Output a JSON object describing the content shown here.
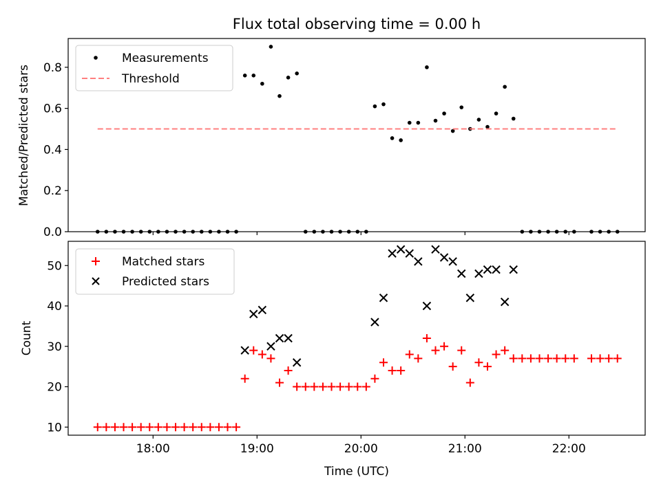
{
  "chart_data": [
    {
      "type": "scatter",
      "title": "Flux total observing time = 0.00 h",
      "xlabel": "",
      "ylabel": "Matched/Predicted stars",
      "xlim": [
        "17:11",
        "22:44"
      ],
      "ylim": [
        0,
        0.94
      ],
      "grid": false,
      "legend": "top-left",
      "x_ticks": [
        "18:00",
        "19:00",
        "20:00",
        "21:00",
        "22:00"
      ],
      "y_ticks": [
        "0.0",
        "0.2",
        "0.4",
        "0.6",
        "0.8"
      ],
      "series": [
        {
          "name": "Measurements",
          "marker": "dot",
          "color": "#000000",
          "points": [
            [
              "17:28",
              0
            ],
            [
              "17:33",
              0
            ],
            [
              "17:38",
              0
            ],
            [
              "17:43",
              0
            ],
            [
              "17:48",
              0
            ],
            [
              "17:53",
              0
            ],
            [
              "17:58",
              0
            ],
            [
              "18:03",
              0
            ],
            [
              "18:08",
              0
            ],
            [
              "18:13",
              0
            ],
            [
              "18:18",
              0
            ],
            [
              "18:23",
              0
            ],
            [
              "18:28",
              0
            ],
            [
              "18:33",
              0
            ],
            [
              "18:38",
              0
            ],
            [
              "18:43",
              0
            ],
            [
              "18:48",
              0
            ],
            [
              "18:53",
              0.76
            ],
            [
              "18:58",
              0.76
            ],
            [
              "19:03",
              0.72
            ],
            [
              "19:08",
              0.9
            ],
            [
              "19:13",
              0.66
            ],
            [
              "19:18",
              0.75
            ],
            [
              "19:23",
              0.77
            ],
            [
              "19:28",
              0
            ],
            [
              "19:33",
              0
            ],
            [
              "19:38",
              0
            ],
            [
              "19:43",
              0
            ],
            [
              "19:48",
              0
            ],
            [
              "19:53",
              0
            ],
            [
              "19:58",
              0
            ],
            [
              "20:03",
              0
            ],
            [
              "20:08",
              0.61
            ],
            [
              "20:13",
              0.62
            ],
            [
              "20:18",
              0.455
            ],
            [
              "20:23",
              0.445
            ],
            [
              "20:28",
              0.53
            ],
            [
              "20:33",
              0.53
            ],
            [
              "20:38",
              0.8
            ],
            [
              "20:43",
              0.54
            ],
            [
              "20:48",
              0.575
            ],
            [
              "20:53",
              0.49
            ],
            [
              "20:58",
              0.605
            ],
            [
              "21:03",
              0.5
            ],
            [
              "21:08",
              0.545
            ],
            [
              "21:13",
              0.51
            ],
            [
              "21:18",
              0.575
            ],
            [
              "21:23",
              0.705
            ],
            [
              "21:28",
              0.55
            ],
            [
              "21:33",
              0
            ],
            [
              "21:38",
              0
            ],
            [
              "21:43",
              0
            ],
            [
              "21:48",
              0
            ],
            [
              "21:53",
              0
            ],
            [
              "21:58",
              0
            ],
            [
              "22:03",
              0
            ],
            [
              "22:13",
              0
            ],
            [
              "22:18",
              0
            ],
            [
              "22:23",
              0
            ],
            [
              "22:28",
              0
            ]
          ]
        },
        {
          "name": "Threshold",
          "marker": "dashed-line",
          "color": "#ff7f7f",
          "points": [
            [
              "17:28",
              0.5
            ],
            [
              "22:28",
              0.5
            ]
          ]
        }
      ]
    },
    {
      "type": "scatter",
      "title": "",
      "xlabel": "Time (UTC)",
      "ylabel": "Count",
      "xlim": [
        "17:11",
        "22:44"
      ],
      "ylim": [
        8,
        56
      ],
      "grid": false,
      "legend": "top-left",
      "x_ticks": [
        "18:00",
        "19:00",
        "20:00",
        "21:00",
        "22:00"
      ],
      "y_ticks": [
        "10",
        "20",
        "30",
        "40",
        "50"
      ],
      "series": [
        {
          "name": "Matched stars",
          "marker": "plus",
          "color": "#ff0000",
          "points": [
            [
              "17:28",
              10
            ],
            [
              "17:33",
              10
            ],
            [
              "17:38",
              10
            ],
            [
              "17:43",
              10
            ],
            [
              "17:48",
              10
            ],
            [
              "17:53",
              10
            ],
            [
              "17:58",
              10
            ],
            [
              "18:03",
              10
            ],
            [
              "18:08",
              10
            ],
            [
              "18:13",
              10
            ],
            [
              "18:18",
              10
            ],
            [
              "18:23",
              10
            ],
            [
              "18:28",
              10
            ],
            [
              "18:33",
              10
            ],
            [
              "18:38",
              10
            ],
            [
              "18:43",
              10
            ],
            [
              "18:48",
              10
            ],
            [
              "18:53",
              22
            ],
            [
              "18:58",
              29
            ],
            [
              "19:03",
              28
            ],
            [
              "19:08",
              27
            ],
            [
              "19:13",
              21
            ],
            [
              "19:18",
              24
            ],
            [
              "19:23",
              20
            ],
            [
              "19:28",
              20
            ],
            [
              "19:33",
              20
            ],
            [
              "19:38",
              20
            ],
            [
              "19:43",
              20
            ],
            [
              "19:48",
              20
            ],
            [
              "19:53",
              20
            ],
            [
              "19:58",
              20
            ],
            [
              "20:03",
              20
            ],
            [
              "20:08",
              22
            ],
            [
              "20:13",
              26
            ],
            [
              "20:18",
              24
            ],
            [
              "20:23",
              24
            ],
            [
              "20:28",
              28
            ],
            [
              "20:33",
              27
            ],
            [
              "20:38",
              32
            ],
            [
              "20:43",
              29
            ],
            [
              "20:48",
              30
            ],
            [
              "20:53",
              25
            ],
            [
              "20:58",
              29
            ],
            [
              "21:03",
              21
            ],
            [
              "21:08",
              26
            ],
            [
              "21:13",
              25
            ],
            [
              "21:18",
              28
            ],
            [
              "21:23",
              29
            ],
            [
              "21:28",
              27
            ],
            [
              "21:33",
              27
            ],
            [
              "21:38",
              27
            ],
            [
              "21:43",
              27
            ],
            [
              "21:48",
              27
            ],
            [
              "21:53",
              27
            ],
            [
              "21:58",
              27
            ],
            [
              "22:03",
              27
            ],
            [
              "22:13",
              27
            ],
            [
              "22:18",
              27
            ],
            [
              "22:23",
              27
            ],
            [
              "22:28",
              27
            ]
          ]
        },
        {
          "name": "Predicted stars",
          "marker": "x",
          "color": "#000000",
          "points": [
            [
              "18:53",
              29
            ],
            [
              "18:58",
              38
            ],
            [
              "19:03",
              39
            ],
            [
              "19:08",
              30
            ],
            [
              "19:13",
              32
            ],
            [
              "19:18",
              32
            ],
            [
              "19:23",
              26
            ],
            [
              "20:08",
              36
            ],
            [
              "20:13",
              42
            ],
            [
              "20:18",
              53
            ],
            [
              "20:23",
              54
            ],
            [
              "20:28",
              53
            ],
            [
              "20:33",
              51
            ],
            [
              "20:38",
              40
            ],
            [
              "20:43",
              54
            ],
            [
              "20:48",
              52
            ],
            [
              "20:53",
              51
            ],
            [
              "20:58",
              48
            ],
            [
              "21:03",
              42
            ],
            [
              "21:08",
              48
            ],
            [
              "21:13",
              49
            ],
            [
              "21:18",
              49
            ],
            [
              "21:23",
              41
            ],
            [
              "21:28",
              49
            ]
          ]
        }
      ]
    }
  ]
}
